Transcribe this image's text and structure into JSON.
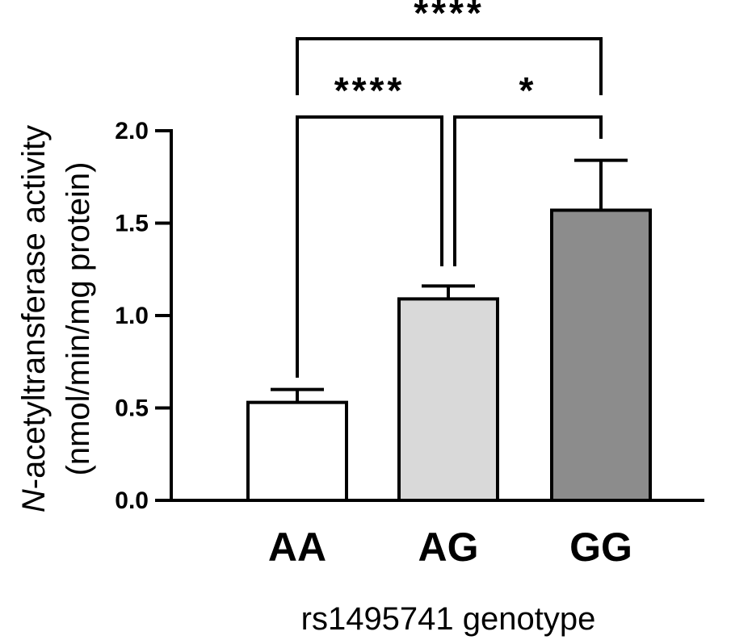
{
  "chart_data": {
    "type": "bar",
    "categories": [
      "AA",
      "AG",
      "GG"
    ],
    "values": [
      0.53,
      1.09,
      1.57
    ],
    "errors": [
      0.07,
      0.07,
      0.27
    ],
    "bar_colors": [
      "#ffffff",
      "#d9d9d9",
      "#8c8c8c"
    ],
    "ylim": [
      0,
      2.0
    ],
    "yticks": [
      "0.0",
      "0.5",
      "1.0",
      "1.5",
      "2.0"
    ],
    "ytick_values": [
      0,
      0.5,
      1.0,
      1.5,
      2.0
    ],
    "ylabel_italic": "N",
    "ylabel_rest": "-acetyltransferase activity",
    "ylabel_units": "(nmol/min/mg protein)",
    "xlabel": "rs1495741 genotype",
    "grid": false,
    "significance": [
      {
        "from": "AA",
        "to": "AG",
        "label": "****"
      },
      {
        "from": "AG",
        "to": "GG",
        "label": "*"
      },
      {
        "from": "AA",
        "to": "GG",
        "label": "****"
      }
    ]
  }
}
